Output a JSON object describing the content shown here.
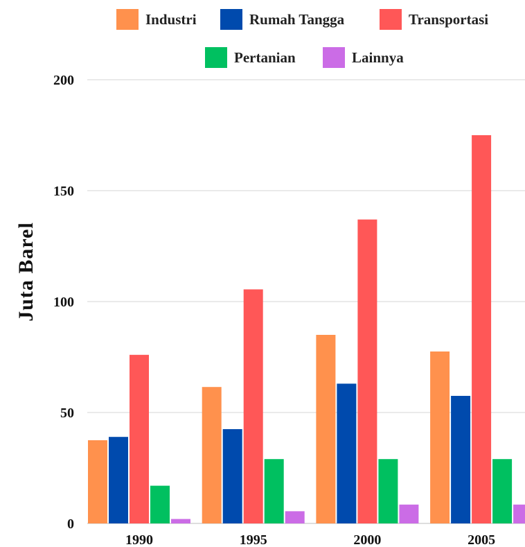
{
  "chart_data": {
    "type": "bar",
    "title": "",
    "xlabel": "",
    "ylabel": "Juta Barel",
    "categories": [
      "1990",
      "1995",
      "2000",
      "2005"
    ],
    "ylim": [
      0,
      200
    ],
    "yticks": [
      "0",
      "50",
      "100",
      "150",
      "200"
    ],
    "grid": true,
    "legend_position": "top",
    "series": [
      {
        "name": "Industri",
        "color": "#FF914D",
        "values": [
          37.5,
          61.5,
          85,
          77.5
        ]
      },
      {
        "name": "Rumah Tangga",
        "color": "#004AAD",
        "values": [
          39,
          42.5,
          63,
          57.5
        ]
      },
      {
        "name": "Transportasi",
        "color": "#FF5757",
        "values": [
          76,
          105.5,
          137,
          175
        ]
      },
      {
        "name": "Pertanian",
        "color": "#00C060",
        "values": [
          17,
          29,
          29,
          29
        ]
      },
      {
        "name": "Lainnya",
        "color": "#CB6CE6",
        "values": [
          2,
          5.5,
          8.5,
          8.5
        ]
      }
    ]
  }
}
